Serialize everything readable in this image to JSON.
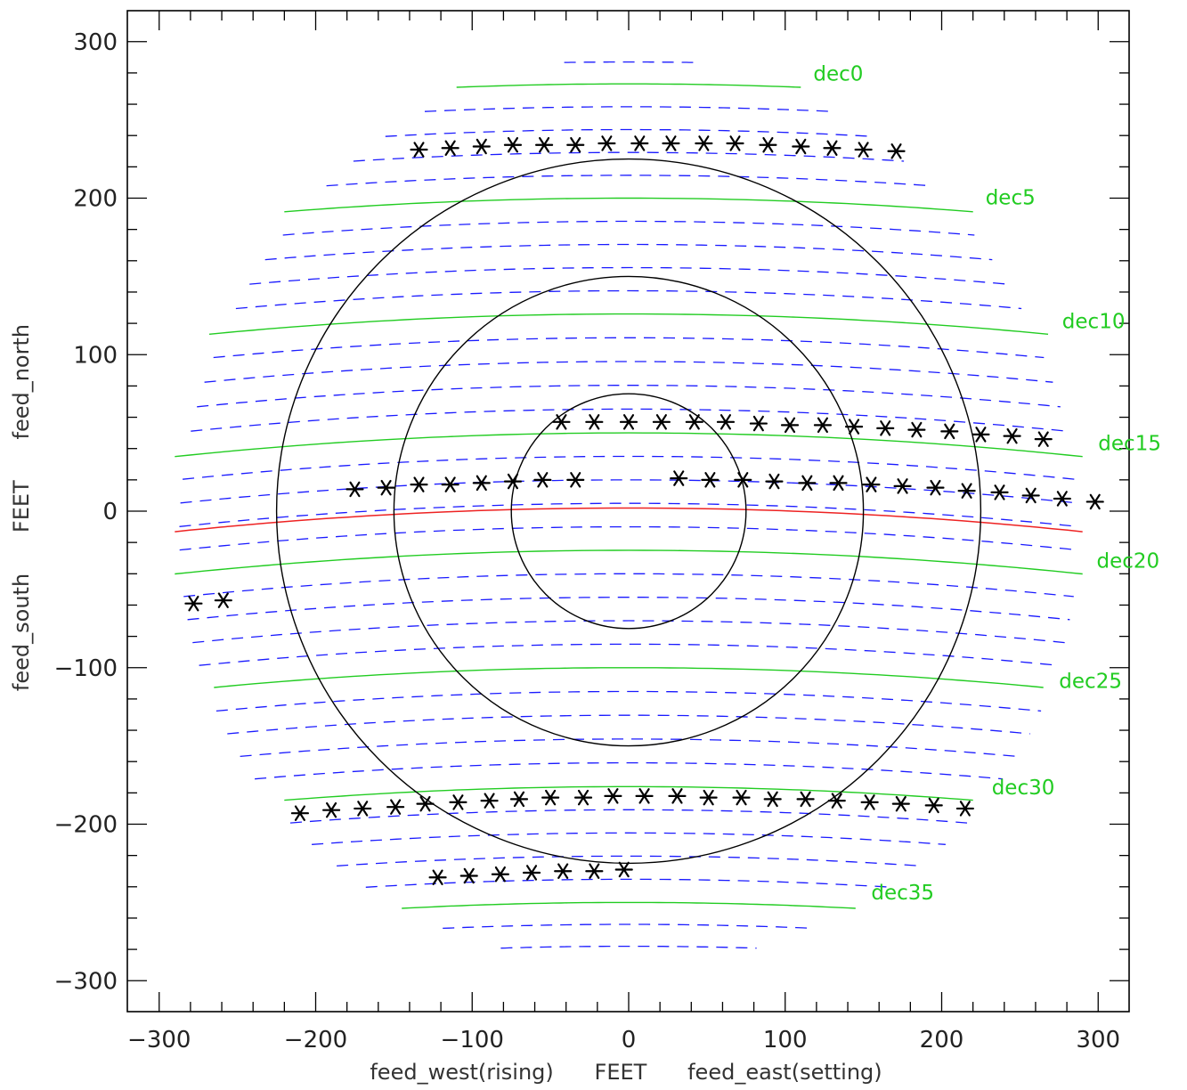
{
  "chart_data": {
    "type": "scatter",
    "title": "",
    "xlabel": "feed_west(rising)      FEET      feed_east(setting)",
    "ylabel": "feed_south      FEET      feed_north",
    "xlim": [
      -320,
      320
    ],
    "ylim": [
      -320,
      320
    ],
    "xticks": [
      -300,
      -200,
      -100,
      0,
      100,
      200,
      300
    ],
    "yticks": [
      -300,
      -200,
      -100,
      0,
      100,
      200,
      300
    ],
    "xtick_labels": [
      "−300",
      "−200",
      "−100",
      "0",
      "100",
      "200",
      "300"
    ],
    "ytick_labels": [
      "−300",
      "−200",
      "−100",
      "0",
      "100",
      "200",
      "300"
    ],
    "minor_tick_step": 20,
    "grid": false,
    "colors": {
      "axes": "#000000",
      "dec_tracks": "#22cc22",
      "half_degree_tracks": "#1a1aff",
      "zenith_track": "#ee2222",
      "circles": "#000000",
      "markers": "#000000"
    },
    "circles": {
      "center": [
        0,
        0
      ],
      "radii": [
        75,
        150,
        225
      ]
    },
    "dec_tracks": [
      {
        "label": "dec0",
        "y0": 273,
        "x_range": [
          -110,
          110
        ],
        "label_at": [
          118,
          275
        ]
      },
      {
        "label": "dec5",
        "y0": 200,
        "x_range": [
          -220,
          220
        ],
        "label_at": [
          228,
          196
        ]
      },
      {
        "label": "dec10",
        "y0": 126,
        "x_range": [
          -268,
          268
        ],
        "label_at": [
          277,
          117
        ]
      },
      {
        "label": "dec15",
        "y0": 50,
        "x_range": [
          -290,
          290
        ],
        "label_at": [
          300,
          39
        ]
      },
      {
        "label": "dec20",
        "y0": -25,
        "x_range": [
          -290,
          290
        ],
        "label_at": [
          299,
          -36
        ]
      },
      {
        "label": "dec25",
        "y0": -100,
        "x_range": [
          -265,
          265
        ],
        "label_at": [
          275,
          -113
        ]
      },
      {
        "label": "dec30",
        "y0": -176,
        "x_range": [
          -220,
          220
        ],
        "label_at": [
          232,
          -181
        ]
      },
      {
        "label": "dec35",
        "y0": -250,
        "x_range": [
          -145,
          145
        ],
        "label_at": [
          155,
          -248
        ]
      }
    ],
    "zenith_track": {
      "y0": 2,
      "x_range": [
        -290,
        290
      ]
    },
    "sag_per_ft2": 0.00018,
    "series": [
      {
        "name": "",
        "marker": "asterisk",
        "points": [
          [
            -134,
            231
          ],
          [
            -114,
            232
          ],
          [
            -94,
            233
          ],
          [
            -74,
            234
          ],
          [
            -54,
            234
          ],
          [
            -34,
            234
          ],
          [
            -14,
            235
          ],
          [
            7,
            235
          ],
          [
            27,
            235
          ],
          [
            48,
            235
          ],
          [
            68,
            235
          ],
          [
            89,
            234
          ],
          [
            110,
            233
          ],
          [
            130,
            232
          ],
          [
            150,
            231
          ],
          [
            171,
            230
          ],
          [
            -43,
            57
          ],
          [
            -22,
            57
          ],
          [
            0,
            57
          ],
          [
            21,
            57
          ],
          [
            42,
            57
          ],
          [
            62,
            57
          ],
          [
            83,
            56
          ],
          [
            103,
            55
          ],
          [
            124,
            55
          ],
          [
            144,
            54
          ],
          [
            164,
            53
          ],
          [
            184,
            52
          ],
          [
            205,
            51
          ],
          [
            225,
            49
          ],
          [
            245,
            48
          ],
          [
            265,
            46
          ],
          [
            -175,
            14
          ],
          [
            -155,
            15
          ],
          [
            -134,
            17
          ],
          [
            -114,
            17
          ],
          [
            -94,
            18
          ],
          [
            -74,
            19
          ],
          [
            -55,
            20
          ],
          [
            -34,
            20
          ],
          [
            32,
            21
          ],
          [
            52,
            20
          ],
          [
            73,
            20
          ],
          [
            93,
            19
          ],
          [
            114,
            18
          ],
          [
            134,
            18
          ],
          [
            155,
            17
          ],
          [
            175,
            16
          ],
          [
            196,
            15
          ],
          [
            216,
            13
          ],
          [
            237,
            12
          ],
          [
            257,
            10
          ],
          [
            277,
            8
          ],
          [
            298,
            6
          ],
          [
            -278,
            -59
          ],
          [
            -259,
            -57
          ],
          [
            -210,
            -193
          ],
          [
            -190,
            -191
          ],
          [
            -170,
            -190
          ],
          [
            -149,
            -189
          ],
          [
            -130,
            -187
          ],
          [
            -109,
            -186
          ],
          [
            -89,
            -185
          ],
          [
            -70,
            -184
          ],
          [
            -50,
            -183
          ],
          [
            -29,
            -183
          ],
          [
            -10,
            -182
          ],
          [
            10,
            -182
          ],
          [
            31,
            -182
          ],
          [
            51,
            -183
          ],
          [
            72,
            -183
          ],
          [
            92,
            -184
          ],
          [
            113,
            -184
          ],
          [
            133,
            -185
          ],
          [
            154,
            -186
          ],
          [
            174,
            -187
          ],
          [
            195,
            -188
          ],
          [
            215,
            -190
          ],
          [
            -122,
            -234
          ],
          [
            -102,
            -233
          ],
          [
            -82,
            -232
          ],
          [
            -62,
            -231
          ],
          [
            -42,
            -230
          ],
          [
            -22,
            -230
          ],
          [
            -3,
            -229
          ]
        ]
      }
    ]
  }
}
